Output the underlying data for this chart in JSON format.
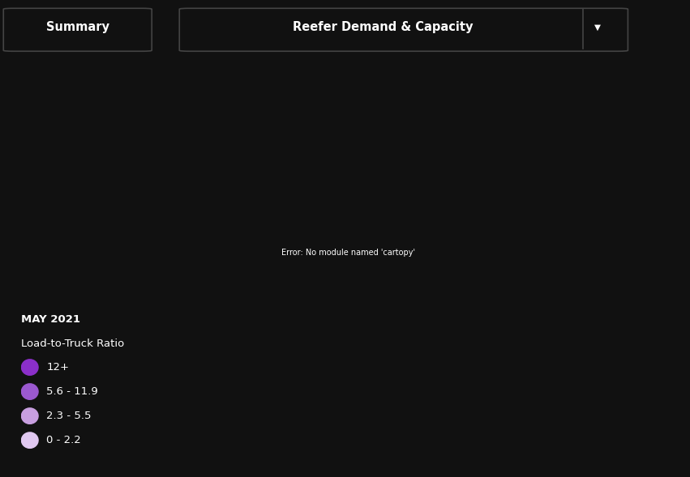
{
  "title": "Load-to-Truck Ratio",
  "date_label": "MAY 2021",
  "summary_btn": "Summary",
  "dropdown_btn": "Reefer Demand & Capacity",
  "background_color": "#111111",
  "state_colors": {
    "Washington": "#E0C8F0",
    "Oregon": "#9B59D0",
    "California": "#8B2FC9",
    "Nevada": "#C89FE0",
    "Idaho": "#9B59D0",
    "Montana": "#9B59D0",
    "Wyoming": "#C89FE0",
    "Utah": "#C89FE0",
    "Arizona": "#8B2FC9",
    "Colorado": "#9B59D0",
    "New Mexico": "#8B2FC9",
    "North Dakota": "#9B59D0",
    "South Dakota": "#9B59D0",
    "Nebraska": "#C89FE0",
    "Kansas": "#8B2FC9",
    "Oklahoma": "#8B2FC9",
    "Texas": "#8B2FC9",
    "Minnesota": "#9B59D0",
    "Iowa": "#9B59D0",
    "Missouri": "#8B2FC9",
    "Arkansas": "#8B2FC9",
    "Louisiana": "#8B2FC9",
    "Wisconsin": "#9B59D0",
    "Illinois": "#9B59D0",
    "Mississippi": "#8B2FC9",
    "Michigan": "#9B59D0",
    "Indiana": "#C89FE0",
    "Kentucky": "#8B2FC9",
    "Tennessee": "#8B2FC9",
    "Alabama": "#8B2FC9",
    "Georgia": "#8B2FC9",
    "Florida": "#8B2FC9",
    "South Carolina": "#8B2FC9",
    "North Carolina": "#8B2FC9",
    "Ohio": "#C89FE0",
    "West Virginia": "#C89FE0",
    "Virginia": "#9B59D0",
    "Pennsylvania": "#9B59D0",
    "New York": "#9B59D0",
    "Vermont": "#8B2FC9",
    "New Hampshire": "#8B2FC9",
    "Maine": "#8B2FC9",
    "Massachusetts": "#E0C8F0",
    "Rhode Island": "#8B2FC9",
    "Connecticut": "#8B2FC9",
    "New Jersey": "#C89FE0",
    "Delaware": "#C89FE0",
    "Maryland": "#C89FE0",
    "District of Columbia": "#C89FE0"
  },
  "legend_colors": [
    "#8B2FC9",
    "#9B59D0",
    "#C89FE0",
    "#E0C8F0"
  ],
  "legend_labels": [
    "12+",
    "5.6 - 11.9",
    "2.3 - 5.5",
    "0 - 2.2"
  ],
  "btn_border_color": "#444444",
  "btn_text_color": "#ffffff",
  "label_color": "#ffffff",
  "edge_color": "#111111"
}
